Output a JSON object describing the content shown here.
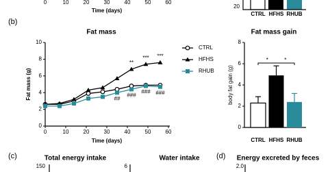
{
  "panel_labels": [
    "(b)",
    "(c)",
    "(d)"
  ],
  "chart_data": [
    {
      "type": "line",
      "title": "Fat mass",
      "xlabel": "Time (days)",
      "ylabel": "Fat mass (g)",
      "x": [
        0,
        7,
        14,
        21,
        28,
        35,
        42,
        49,
        56
      ],
      "xlim": [
        0,
        60
      ],
      "xticks": [
        0,
        10,
        20,
        30,
        40,
        50,
        60
      ],
      "ylim": [
        0,
        10
      ],
      "yticks": [
        0,
        2,
        4,
        6,
        8,
        10
      ],
      "series": [
        {
          "name": "CTRL",
          "color": "#000000",
          "marker": "open-circle",
          "values": [
            2.6,
            2.6,
            3.0,
            3.9,
            4.1,
            4.4,
            4.8,
            4.9,
            4.9
          ]
        },
        {
          "name": "HFHS",
          "color": "#000000",
          "marker": "triangle",
          "values": [
            2.6,
            2.7,
            3.2,
            4.3,
            4.6,
            5.7,
            6.8,
            7.4,
            7.6
          ]
        },
        {
          "name": "RHUB",
          "color": "#2a8c9b",
          "marker": "square",
          "values": [
            2.4,
            2.4,
            2.7,
            3.3,
            3.5,
            4.0,
            4.4,
            4.8,
            4.7
          ]
        }
      ],
      "annotations": [
        {
          "text": "**",
          "x": 42,
          "series": 1
        },
        {
          "text": "***",
          "x": 49,
          "series": 1
        },
        {
          "text": "***",
          "x": 56,
          "series": 1
        },
        {
          "text": "##",
          "x": 35,
          "series": 2
        },
        {
          "text": "###",
          "x": 42,
          "series": 2
        },
        {
          "text": "###",
          "x": 49,
          "series": 2
        },
        {
          "text": "###",
          "x": 56,
          "series": 2
        }
      ]
    },
    {
      "type": "bar",
      "title": "Fat mass gain",
      "ylabel": "body fat gain (g)",
      "categories": [
        "CTRL",
        "HFHS",
        "RHUB"
      ],
      "values": [
        2.3,
        4.9,
        2.4
      ],
      "errors": [
        0.6,
        0.9,
        0.8
      ],
      "colors": [
        "#ffffff",
        "#000000",
        "#2a8c9b"
      ],
      "ylim": [
        0,
        8
      ],
      "yticks": [
        0,
        2,
        4,
        6,
        8
      ],
      "annotations": [
        "*",
        "*"
      ]
    },
    {
      "type": "axis",
      "xlabel": "Time (days)",
      "xlim": [
        0,
        60
      ],
      "xticks": [
        0,
        10,
        20,
        30,
        40,
        50,
        60
      ]
    },
    {
      "type": "axis",
      "categories": [
        "CTRL",
        "HFHS",
        "RHUB"
      ],
      "yticks": [
        20
      ]
    },
    {
      "type": "axis",
      "title": "Total energy intake",
      "yticks": [
        150
      ]
    },
    {
      "type": "axis",
      "title": "Water intake",
      "yticks": [
        6
      ]
    },
    {
      "type": "axis",
      "title": "Energy excreted by feces",
      "yticks": [
        {
          "value": 2,
          "label": "2.0"
        }
      ]
    }
  ]
}
